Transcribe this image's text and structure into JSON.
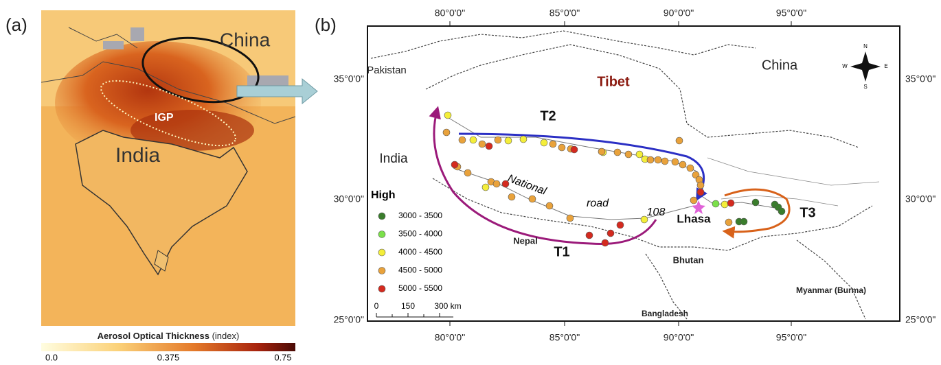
{
  "panel_a": {
    "label": "(a)",
    "place_labels": [
      "China",
      "India",
      "IGP"
    ],
    "colorbar": {
      "title": "Aerosol Optical Thickness",
      "unit": "(index)",
      "ticks": [
        "0.0",
        "0.375",
        "0.75"
      ]
    }
  },
  "panel_b": {
    "label": "(b)",
    "lon_ticks": [
      "80°0'0\"",
      "85°0'0\"",
      "90°0'0\"",
      "95°0'0\""
    ],
    "lat_ticks": [
      "35°0'0\"",
      "30°0'0\"",
      "25°0'0\""
    ],
    "place_labels": [
      "Pakistan",
      "China",
      "Tibet",
      "India",
      "Nepal",
      "Bhutan",
      "Bangladesh",
      "Myanmar (Burma)"
    ],
    "routes": [
      "T1",
      "T2",
      "T3"
    ],
    "road_label": [
      "National",
      "road",
      "108"
    ],
    "city": "Lhasa",
    "compass": [
      "N",
      "E",
      "S",
      "W"
    ],
    "legend": {
      "title": "High",
      "items": [
        {
          "label": "3000 - 3500",
          "color": "#3a7d2c"
        },
        {
          "label": "3500 - 4000",
          "color": "#7be04a"
        },
        {
          "label": "4000 - 4500",
          "color": "#f4ee3a"
        },
        {
          "label": "4500 - 5000",
          "color": "#e9a23b"
        },
        {
          "label": "5000 - 5500",
          "color": "#d42a1f"
        }
      ]
    },
    "scale_bar": [
      "0",
      "150",
      "300 km"
    ]
  }
}
